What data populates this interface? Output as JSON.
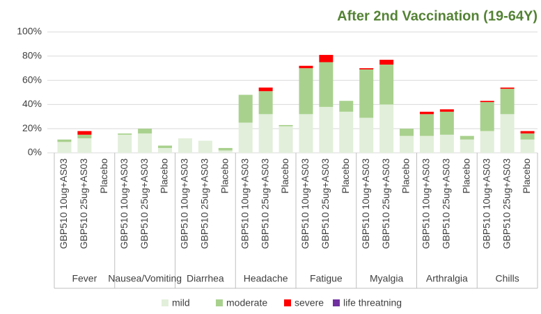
{
  "chart_data": {
    "type": "stacked_bar",
    "title": "After 2nd Vaccination (19-64Y)",
    "categories": [
      "GBP510 10ug+AS03",
      "GBP510 25ug+AS03",
      "Placebo",
      "GBP510 10ug+AS03",
      "GBP510 25ug+AS03",
      "Placebo",
      "GBP510 10ug+AS03",
      "GBP510 25ug+AS03",
      "Placebo",
      "GBP510 10ug+AS03",
      "GBP510 25ug+AS03",
      "Placebo",
      "GBP510 10ug+AS03",
      "GBP510 25ug+AS03",
      "Placebo",
      "GBP510 10ug+AS03",
      "GBP510 25ug+AS03",
      "Placebo",
      "GBP510 10ug+AS03",
      "GBP510 25ug+AS03",
      "Placebo",
      "GBP510 10ug+AS03",
      "GBP510 25ug+AS03",
      "Placebo"
    ],
    "groups": [
      "Fever",
      "Nausea/Vomiting",
      "Diarrhea",
      "Headache",
      "Fatigue",
      "Myalgia",
      "Arthralgia",
      "Chills"
    ],
    "series": [
      {
        "name": "mild",
        "color": "#e2efda",
        "values": [
          9,
          12,
          0,
          15,
          16,
          4,
          12,
          10,
          2,
          25,
          32,
          22,
          32,
          38,
          34,
          29,
          40,
          14,
          14,
          15,
          11,
          18,
          32,
          11
        ]
      },
      {
        "name": "moderate",
        "color": "#a9d18e",
        "values": [
          2,
          3,
          0,
          1,
          4,
          2,
          0,
          0,
          2,
          23,
          19,
          1,
          38,
          37,
          9,
          40,
          33,
          6,
          18,
          19,
          3,
          24,
          21,
          5
        ]
      },
      {
        "name": "severe",
        "color": "#ff0000",
        "values": [
          0,
          3,
          0,
          0,
          0,
          0,
          0,
          0,
          0,
          0,
          3,
          0,
          2,
          6,
          0,
          1,
          4,
          0,
          2,
          2,
          0,
          1,
          1,
          2
        ]
      },
      {
        "name": "life threatning",
        "color": "#7030a0",
        "values": [
          0,
          0,
          0,
          0,
          0,
          0,
          0,
          0,
          0,
          0,
          0,
          0,
          0,
          0,
          0,
          0,
          0,
          0,
          0,
          0,
          0,
          0,
          0,
          0
        ]
      }
    ],
    "ylim": [
      0,
      100
    ],
    "yticks": [
      {
        "value": 0,
        "label": "0%"
      },
      {
        "value": 20,
        "label": "20%"
      },
      {
        "value": 40,
        "label": "40%"
      },
      {
        "value": 60,
        "label": "60%"
      },
      {
        "value": 80,
        "label": "80%"
      },
      {
        "value": 100,
        "label": "100%"
      }
    ],
    "grid": true,
    "legend": "bottom"
  }
}
